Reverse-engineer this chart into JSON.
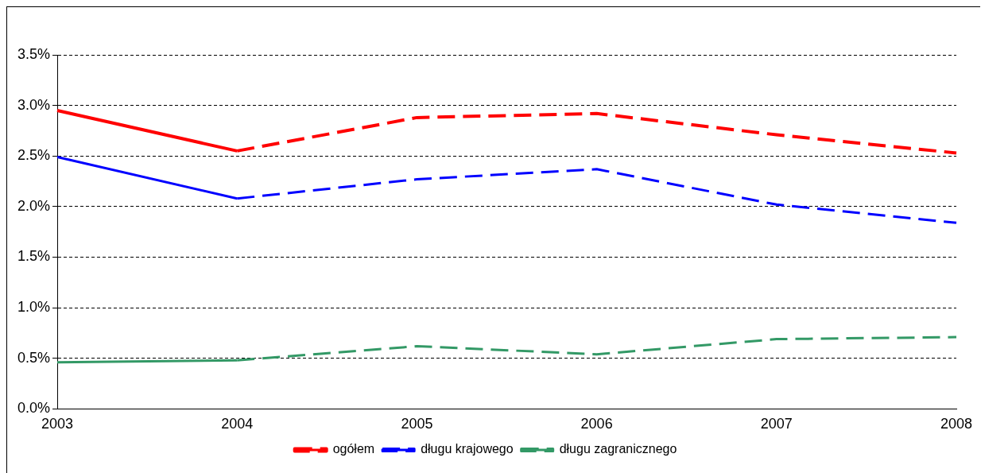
{
  "chart_data": {
    "type": "line",
    "categories": [
      "2003",
      "2004",
      "2005",
      "2006",
      "2007",
      "2008"
    ],
    "series": [
      {
        "color": "#ff0000",
        "line_style": "solid",
        "values": [
          2.95,
          2.55,
          null,
          null,
          null,
          null
        ]
      },
      {
        "name": "ogółem",
        "color": "#ff0000",
        "line_style": "dashed",
        "values": [
          null,
          2.55,
          2.88,
          2.92,
          2.71,
          2.53
        ]
      },
      {
        "color": "#0000ff",
        "line_style": "solid",
        "values": [
          2.49,
          2.08,
          null,
          null,
          null,
          null
        ]
      },
      {
        "name": "długu krajowego",
        "color": "#0000ff",
        "line_style": "dashed",
        "values": [
          null,
          2.08,
          2.27,
          2.37,
          2.02,
          1.84
        ]
      },
      {
        "color": "#339966",
        "line_style": "solid",
        "values": [
          0.46,
          0.48,
          null,
          null,
          null,
          null
        ]
      },
      {
        "name": "długu zagranicznego",
        "color": "#339966",
        "line_style": "dashed",
        "values": [
          null,
          0.48,
          0.62,
          0.54,
          0.69,
          0.71
        ]
      }
    ],
    "ylim": [
      0,
      3.5
    ],
    "yticks": [
      {
        "value": 0,
        "label": "0.0%"
      },
      {
        "value": 0.5,
        "label": "0.5%"
      },
      {
        "value": 1,
        "label": "1.0%"
      },
      {
        "value": 1.5,
        "label": "1.5%"
      },
      {
        "value": 2,
        "label": "2.0%"
      },
      {
        "value": 2.5,
        "label": "2.5%"
      },
      {
        "value": 3,
        "label": "3.0%"
      },
      {
        "value": 3.5,
        "label": "3.5%"
      }
    ],
    "grid": "y",
    "legend": "bottom",
    "marker": "none"
  }
}
